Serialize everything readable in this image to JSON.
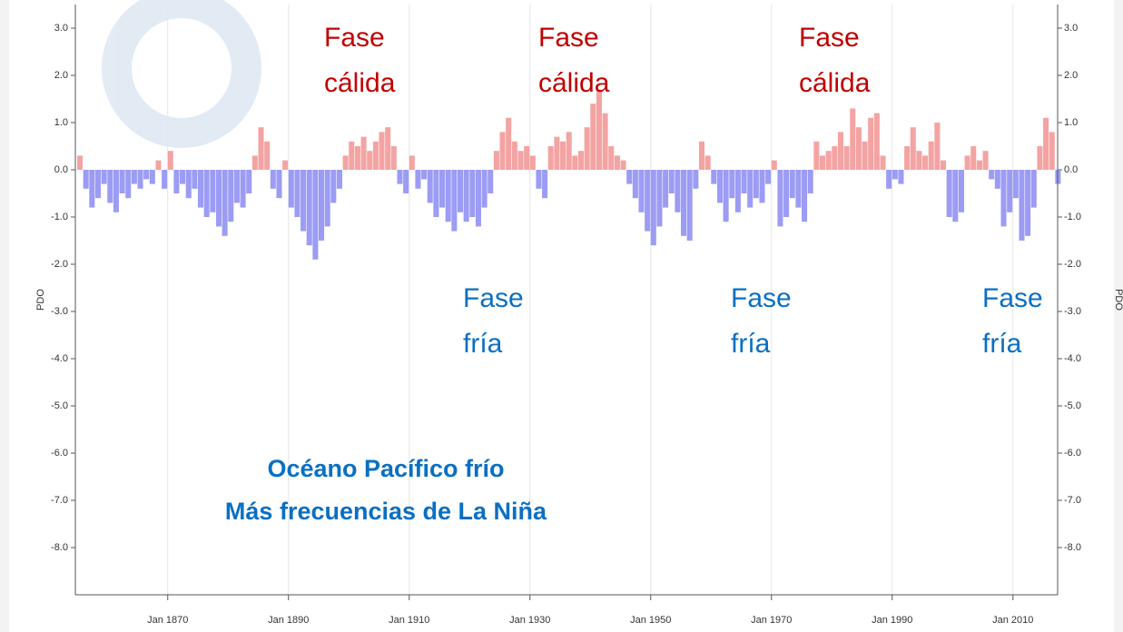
{
  "chart_data": {
    "type": "bar",
    "y_label": "PDO",
    "x": [
      1855,
      1856,
      1857,
      1858,
      1859,
      1860,
      1861,
      1862,
      1863,
      1864,
      1865,
      1866,
      1867,
      1868,
      1869,
      1870,
      1871,
      1872,
      1873,
      1874,
      1875,
      1876,
      1877,
      1878,
      1879,
      1880,
      1881,
      1882,
      1883,
      1884,
      1885,
      1886,
      1887,
      1888,
      1889,
      1890,
      1891,
      1892,
      1893,
      1894,
      1895,
      1896,
      1897,
      1898,
      1899,
      1900,
      1901,
      1902,
      1903,
      1904,
      1905,
      1906,
      1907,
      1908,
      1909,
      1910,
      1911,
      1912,
      1913,
      1914,
      1915,
      1916,
      1917,
      1918,
      1919,
      1920,
      1921,
      1922,
      1923,
      1924,
      1925,
      1926,
      1927,
      1928,
      1929,
      1930,
      1931,
      1932,
      1933,
      1934,
      1935,
      1936,
      1937,
      1938,
      1939,
      1940,
      1941,
      1942,
      1943,
      1944,
      1945,
      1946,
      1947,
      1948,
      1949,
      1950,
      1951,
      1952,
      1953,
      1954,
      1955,
      1956,
      1957,
      1958,
      1959,
      1960,
      1961,
      1962,
      1963,
      1964,
      1965,
      1966,
      1967,
      1968,
      1969,
      1970,
      1971,
      1972,
      1973,
      1974,
      1975,
      1976,
      1977,
      1978,
      1979,
      1980,
      1981,
      1982,
      1983,
      1984,
      1985,
      1986,
      1987,
      1988,
      1989,
      1990,
      1991,
      1992,
      1993,
      1994,
      1995,
      1996,
      1997,
      1998,
      1999,
      2000,
      2001,
      2002,
      2003,
      2004,
      2005,
      2006,
      2007,
      2008,
      2009,
      2010,
      2011,
      2012,
      2013,
      2014,
      2015,
      2016,
      2017
    ],
    "values": [
      0.3,
      -0.4,
      -0.8,
      -0.6,
      -0.3,
      -0.7,
      -0.9,
      -0.5,
      -0.6,
      -0.3,
      -0.4,
      -0.2,
      -0.3,
      0.2,
      -0.4,
      0.4,
      -0.5,
      -0.3,
      -0.6,
      -0.4,
      -0.8,
      -1.0,
      -0.9,
      -1.2,
      -1.4,
      -1.1,
      -0.7,
      -0.8,
      -0.5,
      0.3,
      0.9,
      0.6,
      -0.4,
      -0.6,
      0.2,
      -0.8,
      -1.0,
      -1.3,
      -1.6,
      -1.9,
      -1.5,
      -1.2,
      -0.7,
      -0.4,
      0.3,
      0.6,
      0.5,
      0.7,
      0.4,
      0.6,
      0.8,
      0.9,
      0.5,
      -0.3,
      -0.5,
      0.3,
      -0.4,
      -0.2,
      -0.7,
      -1.0,
      -0.8,
      -1.1,
      -1.3,
      -0.9,
      -1.1,
      -1.0,
      -1.2,
      -0.8,
      -0.5,
      0.4,
      0.8,
      1.1,
      0.6,
      0.4,
      0.5,
      0.3,
      -0.4,
      -0.6,
      0.5,
      0.7,
      0.6,
      0.8,
      0.3,
      0.4,
      0.9,
      1.4,
      1.7,
      1.2,
      0.5,
      0.3,
      0.2,
      -0.3,
      -0.6,
      -0.9,
      -1.3,
      -1.6,
      -1.2,
      -0.8,
      -0.5,
      -0.9,
      -1.4,
      -1.5,
      -0.4,
      0.6,
      0.3,
      -0.3,
      -0.7,
      -1.1,
      -0.6,
      -0.9,
      -0.5,
      -0.8,
      -0.6,
      -0.7,
      -0.3,
      0.2,
      -1.2,
      -1.0,
      -0.6,
      -0.8,
      -1.1,
      -0.5,
      0.6,
      0.3,
      0.4,
      0.5,
      0.8,
      0.5,
      1.3,
      0.9,
      0.6,
      1.1,
      1.2,
      0.3,
      -0.4,
      -0.2,
      -0.3,
      0.5,
      0.9,
      0.4,
      0.3,
      0.6,
      1.0,
      0.2,
      -1.0,
      -1.1,
      -0.9,
      0.3,
      0.5,
      0.2,
      0.4,
      -0.2,
      -0.4,
      -1.2,
      -0.9,
      -0.6,
      -1.5,
      -1.4,
      -0.8,
      0.5,
      1.1,
      0.8,
      -0.3
    ],
    "positive_color": "#f4a3a3",
    "negative_color": "#9c9cf4",
    "xlim": [
      1854.7,
      2017.4
    ],
    "xticks": [
      {
        "value": 1870,
        "label": "Jan 1870"
      },
      {
        "value": 1890,
        "label": "Jan 1890"
      },
      {
        "value": 1910,
        "label": "Jan 1910"
      },
      {
        "value": 1930,
        "label": "Jan 1930"
      },
      {
        "value": 1950,
        "label": "Jan 1950"
      },
      {
        "value": 1970,
        "label": "Jan 1970"
      },
      {
        "value": 1990,
        "label": "Jan 1990"
      },
      {
        "value": 2010,
        "label": "Jan 2010"
      }
    ],
    "ylim": [
      -9.0,
      3.5
    ],
    "yticks": [
      {
        "value": 3,
        "label": "3.0"
      },
      {
        "value": 2,
        "label": "2.0"
      },
      {
        "value": 1,
        "label": "1.0"
      },
      {
        "value": 0,
        "label": "0.0"
      },
      {
        "value": -1,
        "label": "-1.0"
      },
      {
        "value": -2,
        "label": "-2.0"
      },
      {
        "value": -3,
        "label": "-3.0"
      },
      {
        "value": -4,
        "label": "-4.0"
      },
      {
        "value": -5,
        "label": "-5.0"
      },
      {
        "value": -6,
        "label": "-6.0"
      },
      {
        "value": -7,
        "label": "-7.0"
      },
      {
        "value": -8,
        "label": "-8.0"
      }
    ],
    "grid": true,
    "annotations": [
      {
        "lines": [
          "Fase",
          "cálida"
        ],
        "color": "#c00000"
      },
      {
        "lines": [
          "Fase",
          "cálida"
        ],
        "color": "#c00000"
      },
      {
        "lines": [
          "Fase",
          "cálida"
        ],
        "color": "#c00000"
      },
      {
        "lines": [
          "Fase",
          "fría"
        ],
        "color": "#0a6fc2"
      },
      {
        "lines": [
          "Fase",
          "fría"
        ],
        "color": "#0a6fc2"
      },
      {
        "lines": [
          "Fase",
          "fría"
        ],
        "color": "#0a6fc2"
      }
    ],
    "note": [
      "Océano Pacífico frío",
      "Más frecuencias de La Niña"
    ]
  }
}
